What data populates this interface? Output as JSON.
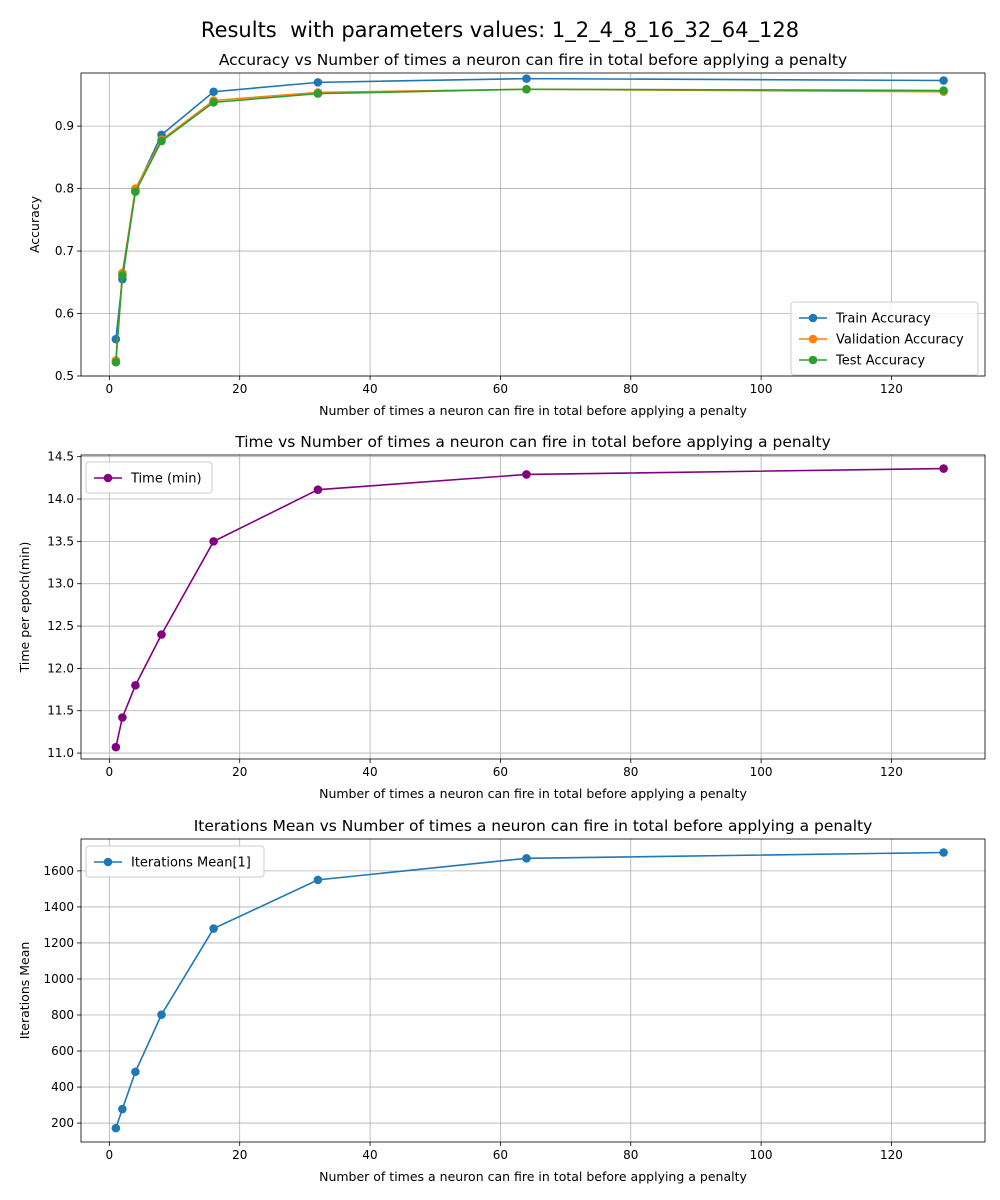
{
  "suptitle": "Results  with parameters values: 1_2_4_8_16_32_64_128",
  "chart_data": [
    {
      "type": "line",
      "title": "Accuracy vs Number of times a neuron can fire in total before applying a penalty",
      "xlabel": "Number of times a neuron can fire in total before applying a penalty",
      "ylabel": "Accuracy",
      "x": [
        1,
        2,
        4,
        8,
        16,
        32,
        64,
        128
      ],
      "xlim": [
        -4.35,
        134.35
      ],
      "ylim": [
        0.5,
        0.985
      ],
      "xticks": [
        0,
        20,
        40,
        60,
        80,
        100,
        120
      ],
      "yticks": [
        0.5,
        0.6,
        0.7,
        0.8,
        0.9
      ],
      "yticks_labels": [
        "0.5",
        "0.6",
        "0.7",
        "0.8",
        "0.9"
      ],
      "grid": true,
      "legend_position": "lower-right",
      "series": [
        {
          "name": "Train Accuracy",
          "color": "#1f77b4",
          "values": [
            0.559,
            0.655,
            0.797,
            0.886,
            0.955,
            0.97,
            0.976,
            0.973
          ]
        },
        {
          "name": "Validation Accuracy",
          "color": "#ff7f0e",
          "values": [
            0.525,
            0.665,
            0.8,
            0.878,
            0.941,
            0.954,
            0.959,
            0.955
          ]
        },
        {
          "name": "Test Accuracy",
          "color": "#2ca02c",
          "values": [
            0.522,
            0.661,
            0.795,
            0.876,
            0.938,
            0.952,
            0.959,
            0.957
          ]
        }
      ]
    },
    {
      "type": "line",
      "title": "Time vs Number of times a neuron can fire in total before applying a penalty",
      "xlabel": "Number of times a neuron can fire in total before applying a penalty",
      "ylabel": "Time per epoch(min)",
      "x": [
        1,
        2,
        4,
        8,
        16,
        32,
        64,
        128
      ],
      "xlim": [
        -4.35,
        134.35
      ],
      "ylim": [
        10.93,
        14.52
      ],
      "xticks": [
        0,
        20,
        40,
        60,
        80,
        100,
        120
      ],
      "yticks": [
        11.0,
        11.5,
        12.0,
        12.5,
        13.0,
        13.5,
        14.0,
        14.5
      ],
      "yticks_labels": [
        "11.0",
        "11.5",
        "12.0",
        "12.5",
        "13.0",
        "13.5",
        "14.0",
        "14.5"
      ],
      "grid": true,
      "legend_position": "upper-left",
      "series": [
        {
          "name": "Time (min)",
          "color": "#800080",
          "values": [
            11.07,
            11.42,
            11.8,
            12.4,
            13.5,
            14.11,
            14.29,
            14.36
          ]
        }
      ]
    },
    {
      "type": "line",
      "title": "Iterations Mean vs Number of times a neuron can fire in total before applying a penalty",
      "xlabel": "Number of times a neuron can fire in total before applying a penalty",
      "ylabel": "Iterations Mean",
      "x": [
        1,
        2,
        4,
        8,
        16,
        32,
        64,
        128
      ],
      "xlim": [
        -4.35,
        134.35
      ],
      "ylim": [
        95,
        1777
      ],
      "xticks": [
        0,
        20,
        40,
        60,
        80,
        100,
        120
      ],
      "yticks": [
        200,
        400,
        600,
        800,
        1000,
        1200,
        1400,
        1600
      ],
      "yticks_labels": [
        "200",
        "400",
        "600",
        "800",
        "1000",
        "1200",
        "1400",
        "1600"
      ],
      "grid": true,
      "legend_position": "upper-left",
      "series": [
        {
          "name": "Iterations Mean[1]",
          "color": "#1f77b4",
          "values": [
            172,
            278,
            485,
            802,
            1280,
            1550,
            1670,
            1702
          ]
        }
      ]
    }
  ]
}
